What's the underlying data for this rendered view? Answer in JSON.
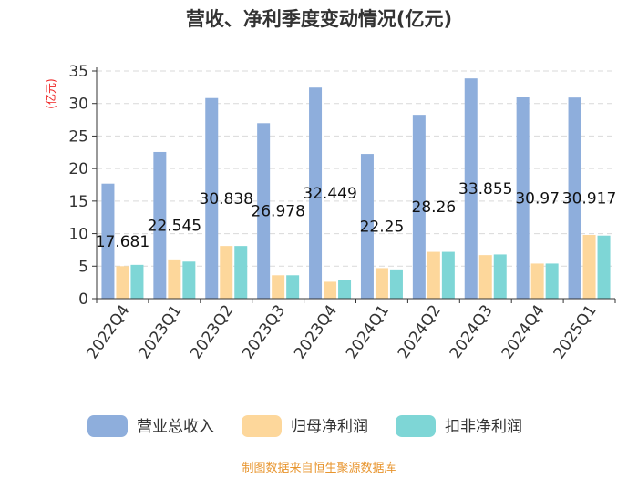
{
  "chart_data": {
    "type": "bar",
    "title": "营收、净利季度变动情况(亿元)",
    "ylabel": "(亿元)",
    "ylim": [
      0,
      35
    ],
    "yticks": [
      0,
      5,
      10,
      15,
      20,
      25,
      30,
      35
    ],
    "grid": true,
    "legend_position": "bottom",
    "categories": [
      "2022Q4",
      "2023Q1",
      "2023Q2",
      "2023Q3",
      "2023Q4",
      "2024Q1",
      "2024Q2",
      "2024Q3",
      "2024Q4",
      "2025Q1"
    ],
    "series": [
      {
        "name": "营业总收入",
        "values": [
          17.681,
          22.545,
          30.838,
          26.978,
          32.449,
          22.25,
          28.26,
          33.855,
          30.97,
          30.917
        ]
      },
      {
        "name": "归母净利润",
        "values": [
          5.0,
          5.9,
          8.1,
          3.6,
          2.6,
          4.7,
          7.2,
          6.7,
          5.4,
          9.8
        ]
      },
      {
        "name": "扣非净利润",
        "values": [
          5.2,
          5.7,
          8.1,
          3.6,
          2.8,
          4.5,
          7.2,
          6.8,
          5.4,
          9.7
        ]
      }
    ],
    "data_labels": [
      "17.681",
      "22.545",
      "30.838",
      "26.978",
      "32.449",
      "22.25",
      "28.26",
      "33.855",
      "30.97",
      "30.917"
    ],
    "source": "制图数据来自恒生聚源数据库"
  },
  "colors": {
    "revenue": "#8eaedc",
    "parent_profit": "#fdd79b",
    "deducted_profit": "#7ed6d6",
    "unit_label": "#ee2222",
    "source_text": "#e8952e",
    "grid": "#d9d9d9",
    "axis": "#333333"
  }
}
